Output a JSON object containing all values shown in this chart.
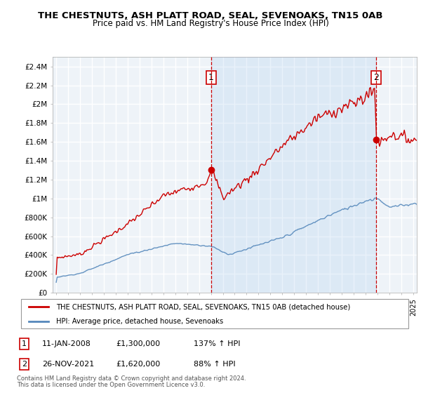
{
  "title": "THE CHESTNUTS, ASH PLATT ROAD, SEAL, SEVENOAKS, TN15 0AB",
  "subtitle": "Price paid vs. HM Land Registry's House Price Index (HPI)",
  "ylabel_ticks": [
    "£0",
    "£200K",
    "£400K",
    "£600K",
    "£800K",
    "£1M",
    "£1.2M",
    "£1.4M",
    "£1.6M",
    "£1.8M",
    "£2M",
    "£2.2M",
    "£2.4M"
  ],
  "ytick_values": [
    0,
    200000,
    400000,
    600000,
    800000,
    1000000,
    1200000,
    1400000,
    1600000,
    1800000,
    2000000,
    2200000,
    2400000
  ],
  "ylim": [
    0,
    2500000
  ],
  "xlim_start": 1994.7,
  "xlim_end": 2025.3,
  "sale1_date": 2008.03,
  "sale1_price": 1300000,
  "sale1_label": "1",
  "sale2_date": 2021.9,
  "sale2_price": 1620000,
  "sale2_label": "2",
  "red_color": "#cc0000",
  "blue_color": "#5588bb",
  "shade_color": "#ddeeff",
  "annotation_vline_color": "#cc0000",
  "background_color": "#ffffff",
  "chart_bg_color": "#f0f4f8",
  "grid_color": "#cccccc",
  "legend_label_red": "THE CHESTNUTS, ASH PLATT ROAD, SEAL, SEVENOAKS, TN15 0AB (detached house)",
  "legend_label_blue": "HPI: Average price, detached house, Sevenoaks",
  "footnote1": "Contains HM Land Registry data © Crown copyright and database right 2024.",
  "footnote2": "This data is licensed under the Open Government Licence v3.0.",
  "table_row1": [
    "1",
    "11-JAN-2008",
    "£1,300,000",
    "137% ↑ HPI"
  ],
  "table_row2": [
    "2",
    "26-NOV-2021",
    "£1,620,000",
    "88% ↑ HPI"
  ]
}
